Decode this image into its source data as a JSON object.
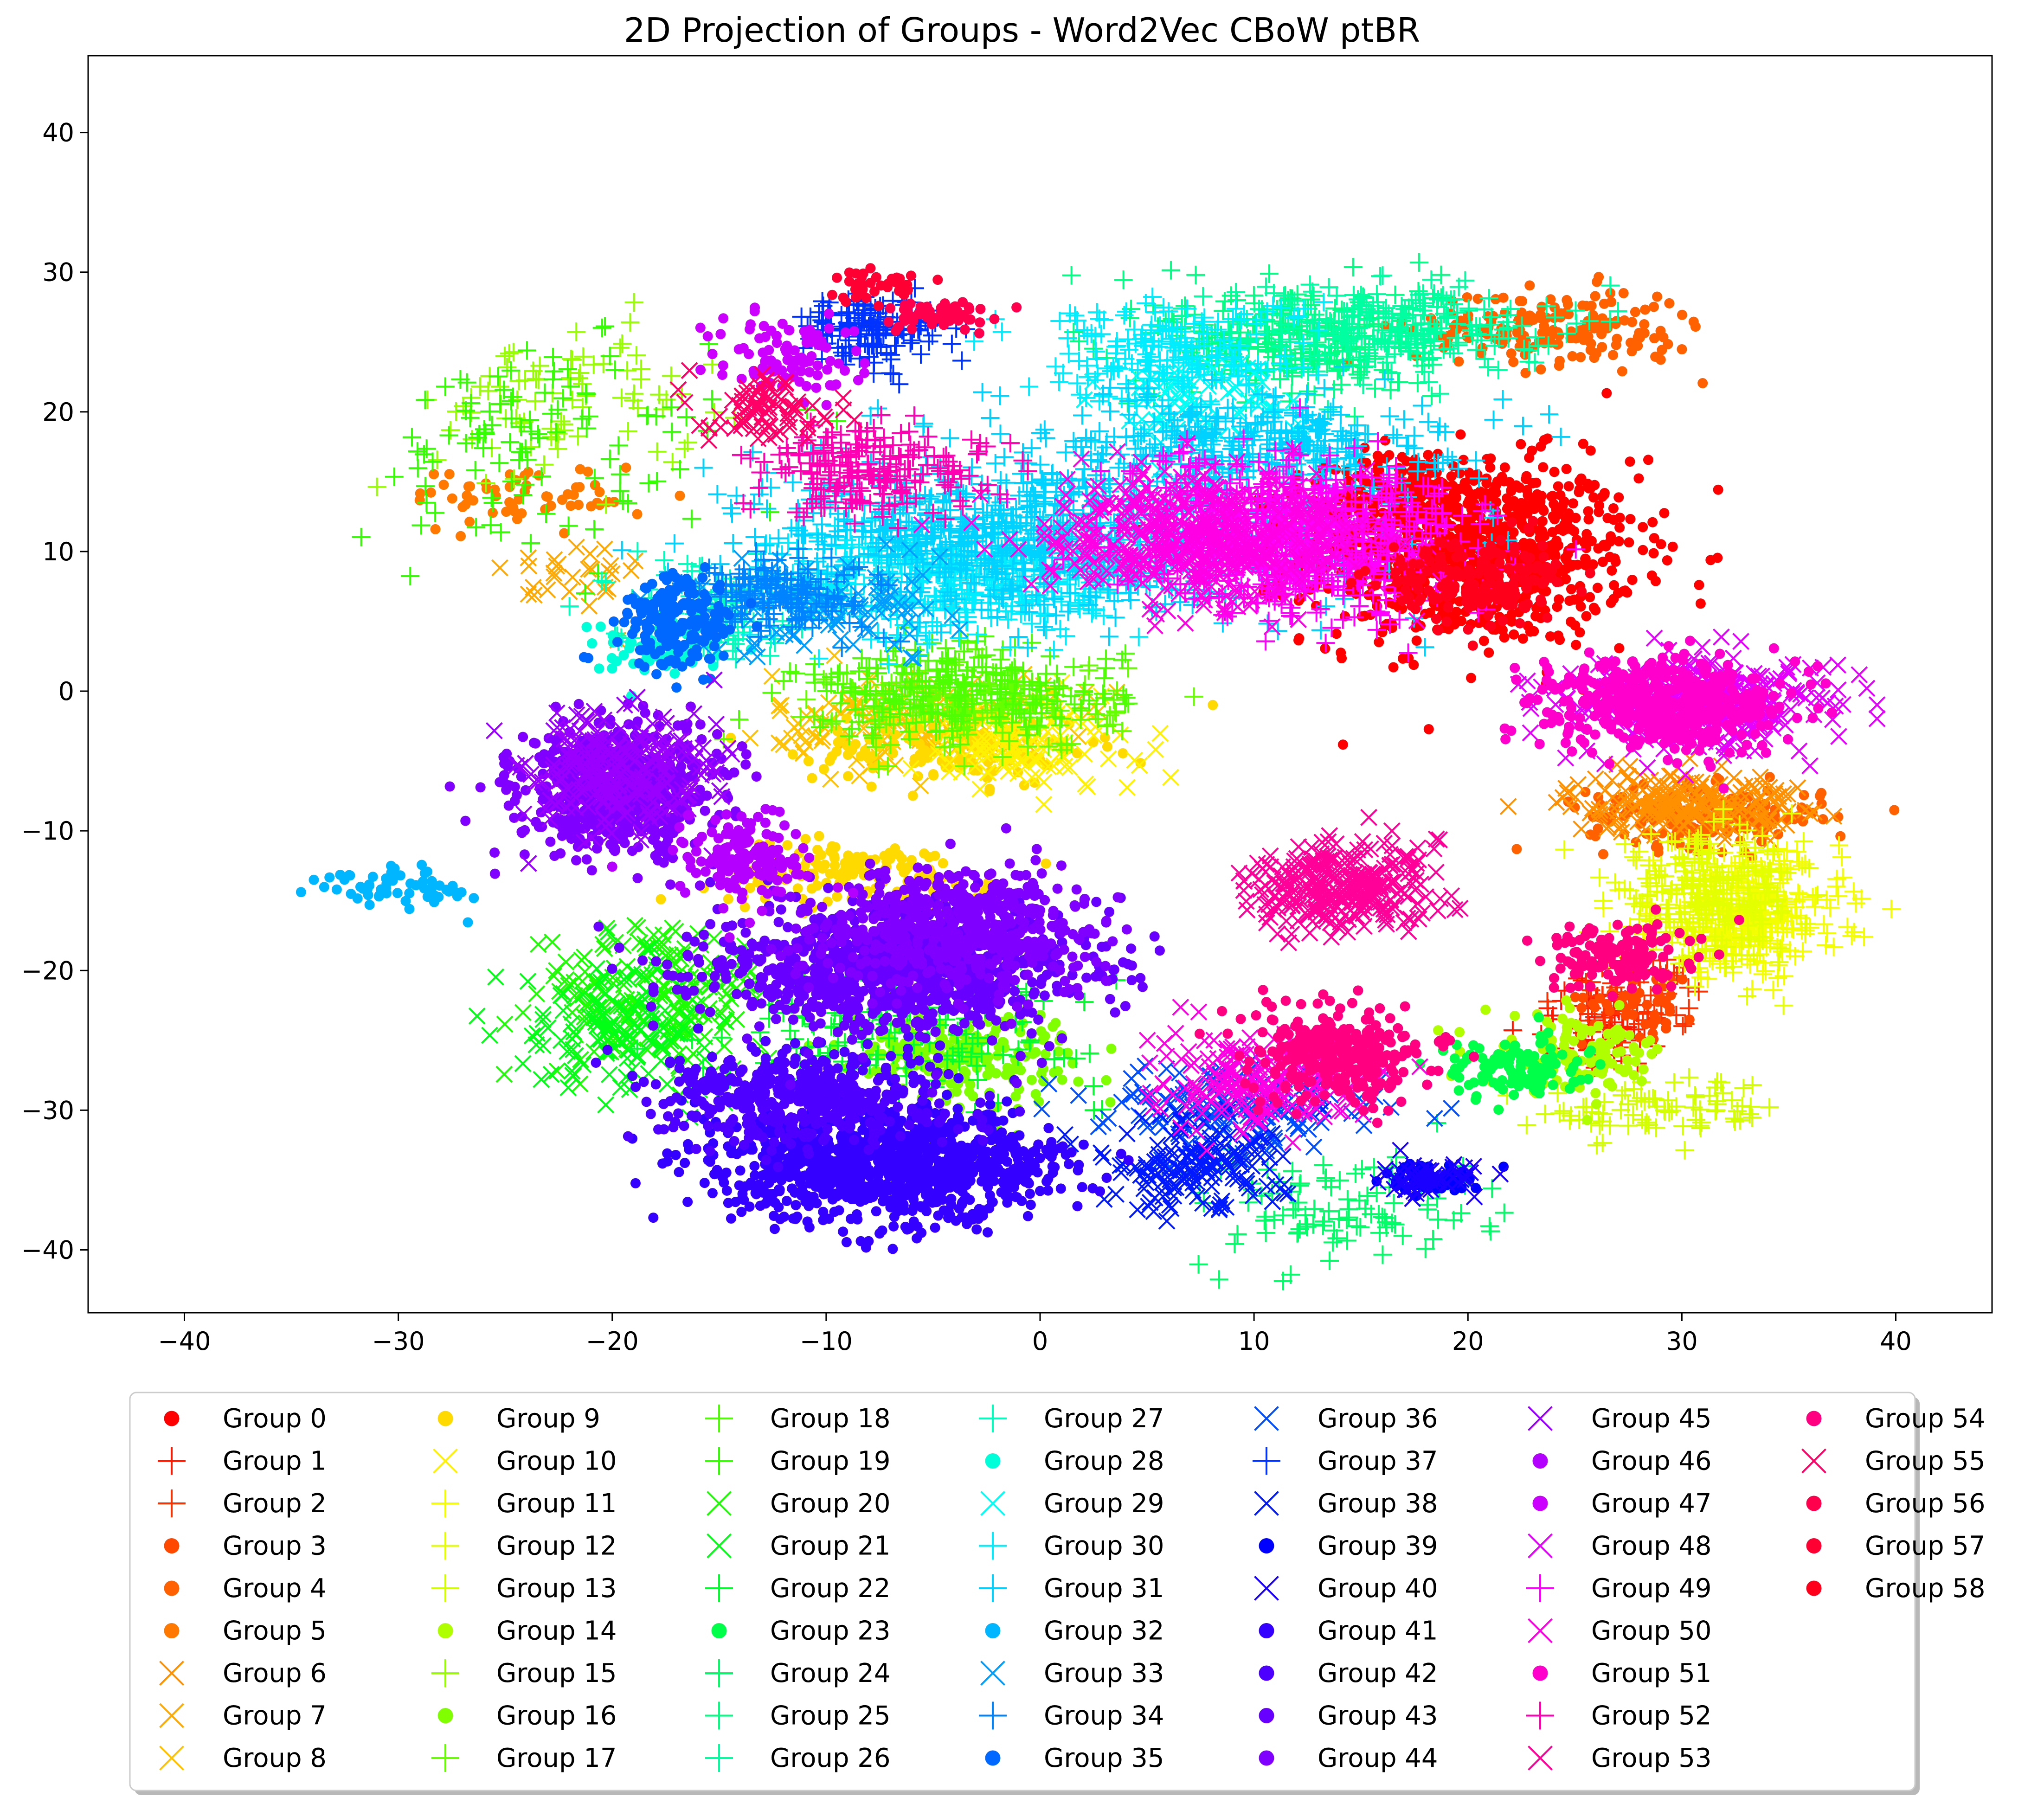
{
  "chart_data": {
    "type": "scatter",
    "title": "2D Projection of Groups - Word2Vec CBoW ptBR",
    "xlabel": "",
    "ylabel": "",
    "xlim": [
      -44.5,
      44.5
    ],
    "ylim": [
      -44.5,
      45.5
    ],
    "xticks": [
      -40,
      -30,
      -20,
      -10,
      0,
      10,
      20,
      30,
      40
    ],
    "yticks": [
      -40,
      -30,
      -20,
      -10,
      0,
      10,
      20,
      30,
      40
    ],
    "xtick_labels": [
      "−40",
      "−30",
      "−20",
      "−10",
      "0",
      "10",
      "20",
      "30",
      "40"
    ],
    "ytick_labels": [
      "−40",
      "−30",
      "−20",
      "−10",
      "0",
      "10",
      "20",
      "30",
      "40"
    ],
    "grid": false,
    "legend_position": "bottom-center",
    "legend_columns": 7,
    "series": [
      {
        "name": "Group 0",
        "marker": "o",
        "color": "#ff0000",
        "clusters": [
          [
            16,
            14,
            7,
            6,
            900
          ],
          [
            13,
            18,
            3,
            3,
            120
          ]
        ]
      },
      {
        "name": "Group 1",
        "marker": "+",
        "color": "#ff1800",
        "clusters": [
          [
            22,
            -20,
            3,
            3,
            60
          ]
        ]
      },
      {
        "name": "Group 2",
        "marker": "+",
        "color": "#ff3000",
        "clusters": [
          [
            24,
            -18,
            3,
            3,
            60
          ]
        ]
      },
      {
        "name": "Group 3",
        "marker": "o",
        "color": "#ff4800",
        "clusters": [
          [
            24,
            -18,
            2.5,
            2.5,
            50
          ]
        ]
      },
      {
        "name": "Group 4",
        "marker": "o",
        "color": "#ff6100",
        "clusters": [
          [
            27,
            -5,
            5,
            2,
            200
          ],
          [
            20,
            30,
            6,
            2.5,
            200
          ]
        ]
      },
      {
        "name": "Group 5",
        "marker": "o",
        "color": "#ff7800",
        "clusters": [
          [
            -28,
            18,
            5,
            2,
            60
          ]
        ]
      },
      {
        "name": "Group 6",
        "marker": "x",
        "color": "#ff9100",
        "clusters": [
          [
            26,
            -4,
            5,
            2,
            200
          ]
        ]
      },
      {
        "name": "Group 7",
        "marker": "x",
        "color": "#ffa900",
        "clusters": [
          [
            -26,
            12,
            3,
            3,
            30
          ]
        ]
      },
      {
        "name": "Group 8",
        "marker": "x",
        "color": "#ffc100",
        "clusters": [
          [
            -10,
            2,
            6,
            3,
            150
          ]
        ]
      },
      {
        "name": "Group 9",
        "marker": "o",
        "color": "#ffda00",
        "clusters": [
          [
            -13,
            -9,
            6,
            2,
            150
          ],
          [
            -8,
            0,
            6,
            2.5,
            150
          ]
        ]
      },
      {
        "name": "Group 10",
        "marker": "x",
        "color": "#fff200",
        "clusters": [
          [
            -5,
            0,
            5,
            3,
            120
          ]
        ]
      },
      {
        "name": "Group 11",
        "marker": "+",
        "color": "#f3ff00",
        "clusters": [
          [
            29,
            -12,
            4,
            4,
            300
          ]
        ]
      },
      {
        "name": "Group 12",
        "marker": "+",
        "color": "#e3ff00",
        "clusters": [
          [
            27,
            -11,
            4,
            4,
            250
          ]
        ]
      },
      {
        "name": "Group 13",
        "marker": "+",
        "color": "#d3ff00",
        "clusters": [
          [
            25,
            -26,
            5,
            2,
            80
          ]
        ]
      },
      {
        "name": "Group 14",
        "marker": "o",
        "color": "#b0ff00",
        "clusters": [
          [
            21,
            -22,
            4,
            2.5,
            120
          ]
        ]
      },
      {
        "name": "Group 15",
        "marker": "+",
        "color": "#98ff00",
        "clusters": [
          [
            -27,
            25,
            6,
            5,
            100
          ]
        ]
      },
      {
        "name": "Group 16",
        "marker": "o",
        "color": "#7fff00",
        "clusters": [
          [
            -8,
            -22,
            5,
            3,
            200
          ]
        ]
      },
      {
        "name": "Group 17",
        "marker": "+",
        "color": "#66ff00",
        "clusters": [
          [
            -7,
            3,
            6,
            3,
            200
          ]
        ]
      },
      {
        "name": "Group 18",
        "marker": "+",
        "color": "#4dff00",
        "clusters": [
          [
            -8,
            4,
            7,
            3,
            200
          ]
        ]
      },
      {
        "name": "Group 19",
        "marker": "+",
        "color": "#34ff00",
        "clusters": [
          [
            -28,
            22,
            8,
            7,
            120
          ]
        ]
      },
      {
        "name": "Group 20",
        "marker": "x",
        "color": "#1bff00",
        "clusters": [
          [
            -22,
            -18,
            5,
            5,
            200
          ]
        ]
      },
      {
        "name": "Group 21",
        "marker": "x",
        "color": "#00ff14",
        "clusters": [
          [
            -24,
            -20,
            4,
            4,
            120
          ]
        ]
      },
      {
        "name": "Group 22",
        "marker": "+",
        "color": "#00ff2d",
        "clusters": [
          [
            -10,
            -20,
            8,
            4,
            150
          ]
        ]
      },
      {
        "name": "Group 23",
        "marker": "o",
        "color": "#00ff49",
        "clusters": [
          [
            18,
            -23,
            3,
            2,
            120
          ]
        ]
      },
      {
        "name": "Group 24",
        "marker": "+",
        "color": "#00ff66",
        "clusters": [
          [
            10,
            -33,
            6,
            4,
            100
          ]
        ]
      },
      {
        "name": "Group 25",
        "marker": "+",
        "color": "#00ff83",
        "clusters": [
          [
            8,
            29,
            6,
            4,
            250
          ]
        ]
      },
      {
        "name": "Group 26",
        "marker": "+",
        "color": "#00ffa0",
        "clusters": [
          [
            12,
            30,
            7,
            3,
            250
          ]
        ]
      },
      {
        "name": "Group 27",
        "marker": "+",
        "color": "#00ffbd",
        "clusters": [
          [
            -20,
            10,
            4,
            3,
            100
          ]
        ]
      },
      {
        "name": "Group 28",
        "marker": "o",
        "color": "#00ffd9",
        "clusters": [
          [
            -22,
            7,
            3,
            2,
            60
          ]
        ]
      },
      {
        "name": "Group 29",
        "marker": "x",
        "color": "#00fff5",
        "clusters": [
          [
            3,
            25,
            4,
            3,
            80
          ]
        ]
      },
      {
        "name": "Group 30",
        "marker": "+",
        "color": "#00ecff",
        "clusters": [
          [
            2,
            28,
            6,
            4,
            200
          ],
          [
            -8,
            12,
            8,
            4,
            400
          ]
        ]
      },
      {
        "name": "Group 31",
        "marker": "+",
        "color": "#00d2ff",
        "clusters": [
          [
            -4,
            15,
            12,
            5,
            800
          ],
          [
            6,
            22,
            8,
            3,
            300
          ]
        ]
      },
      {
        "name": "Group 32",
        "marker": "o",
        "color": "#00b7ff",
        "clusters": [
          [
            -34,
            -10,
            3,
            1.5,
            60
          ]
        ]
      },
      {
        "name": "Group 33",
        "marker": "x",
        "color": "#009dff",
        "clusters": [
          [
            -14,
            10,
            6,
            3,
            100
          ]
        ]
      },
      {
        "name": "Group 34",
        "marker": "+",
        "color": "#0083ff",
        "clusters": [
          [
            -16,
            11,
            4,
            2.5,
            150
          ]
        ]
      },
      {
        "name": "Group 35",
        "marker": "o",
        "color": "#0068ff",
        "clusters": [
          [
            -21,
            9,
            2.5,
            3,
            200
          ]
        ]
      },
      {
        "name": "Group 36",
        "marker": "x",
        "color": "#004eff",
        "clusters": [
          [
            5,
            -26,
            6,
            3,
            150
          ]
        ]
      },
      {
        "name": "Group 37",
        "marker": "+",
        "color": "#0033ff",
        "clusters": [
          [
            -12,
            30,
            3,
            2.5,
            150
          ]
        ]
      },
      {
        "name": "Group 38",
        "marker": "x",
        "color": "#0019ff",
        "clusters": [
          [
            3,
            -30,
            4,
            3,
            150
          ]
        ]
      },
      {
        "name": "Group 39",
        "marker": "o",
        "color": "#0000ff",
        "clusters": [
          [
            14,
            -31,
            2,
            1,
            60
          ]
        ]
      },
      {
        "name": "Group 40",
        "marker": "x",
        "color": "#1a00ff",
        "clusters": [
          [
            14,
            -31,
            2,
            1,
            60
          ]
        ]
      },
      {
        "name": "Group 41",
        "marker": "o",
        "color": "#3400ff",
        "clusters": [
          [
            -11,
            -30,
            7,
            3.5,
            1100
          ]
        ]
      },
      {
        "name": "Group 42",
        "marker": "o",
        "color": "#4d00ff",
        "clusters": [
          [
            -15,
            -25,
            6,
            3,
            500
          ]
        ]
      },
      {
        "name": "Group 43",
        "marker": "o",
        "color": "#6700ff",
        "clusters": [
          [
            -11,
            -16,
            8,
            4,
            900
          ]
        ]
      },
      {
        "name": "Group 44",
        "marker": "o",
        "color": "#8000ff",
        "clusters": [
          [
            -24,
            -3,
            4,
            4,
            700
          ],
          [
            -8,
            -13,
            6,
            4,
            600
          ]
        ]
      },
      {
        "name": "Group 45",
        "marker": "x",
        "color": "#9900ff",
        "clusters": [
          [
            -24,
            -2,
            4,
            4,
            250
          ]
        ]
      },
      {
        "name": "Group 46",
        "marker": "o",
        "color": "#b300ff",
        "clusters": [
          [
            -18,
            -8,
            3,
            3,
            150
          ]
        ]
      },
      {
        "name": "Group 47",
        "marker": "o",
        "color": "#cc00ff",
        "clusters": [
          [
            -16,
            28,
            3,
            3,
            100
          ]
        ]
      },
      {
        "name": "Group 48",
        "marker": "x",
        "color": "#e500ff",
        "clusters": [
          [
            27,
            3,
            6,
            3,
            300
          ]
        ]
      },
      {
        "name": "Group 49",
        "marker": "+",
        "color": "#ff00ff",
        "clusters": [
          [
            8,
            15,
            7,
            5,
            700
          ]
        ]
      },
      {
        "name": "Group 50",
        "marker": "x",
        "color": "#ff00e5",
        "clusters": [
          [
            4,
            15,
            7,
            4,
            500
          ],
          [
            6,
            -24,
            5,
            3,
            200
          ]
        ]
      },
      {
        "name": "Group 51",
        "marker": "o",
        "color": "#ff00cc",
        "clusters": [
          [
            25,
            3,
            5,
            3,
            500
          ]
        ]
      },
      {
        "name": "Group 52",
        "marker": "+",
        "color": "#ff00b3",
        "clusters": [
          [
            -12,
            20,
            5,
            3,
            200
          ]
        ]
      },
      {
        "name": "Group 53",
        "marker": "x",
        "color": "#ff0099",
        "clusters": [
          [
            10,
            -10,
            4,
            3,
            300
          ]
        ]
      },
      {
        "name": "Group 54",
        "marker": "o",
        "color": "#ff0080",
        "clusters": [
          [
            10,
            -22,
            4,
            3,
            300
          ],
          [
            23,
            -15,
            3,
            2,
            150
          ]
        ]
      },
      {
        "name": "Group 55",
        "marker": "x",
        "color": "#ff0066",
        "clusters": [
          [
            -17,
            24,
            3,
            2,
            80
          ]
        ]
      },
      {
        "name": "Group 56",
        "marker": "o",
        "color": "#ff004d",
        "clusters": [
          [
            -9,
            31,
            2,
            1,
            60
          ]
        ]
      },
      {
        "name": "Group 57",
        "marker": "o",
        "color": "#ff0033",
        "clusters": [
          [
            -12,
            33,
            2,
            1,
            40
          ]
        ]
      },
      {
        "name": "Group 58",
        "marker": "o",
        "color": "#ff001a",
        "clusters": [
          [
            16,
            12,
            4,
            3,
            200
          ]
        ]
      }
    ]
  }
}
